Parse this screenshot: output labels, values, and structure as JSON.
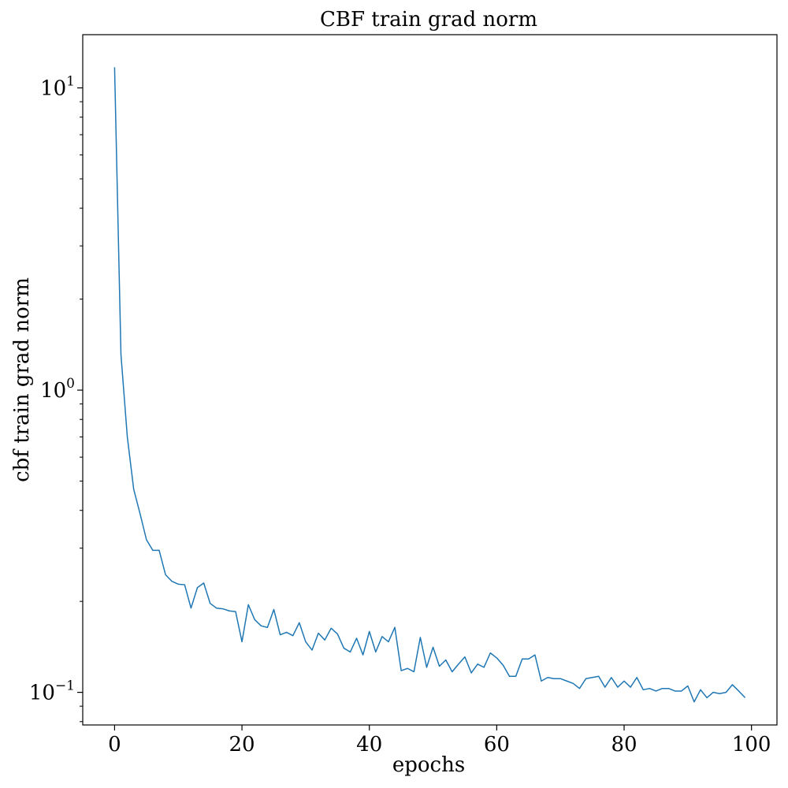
{
  "chart_data": {
    "type": "line",
    "title": "CBF train grad norm",
    "xlabel": "epochs",
    "ylabel": "cbf train grad norm",
    "xlim": [
      -5,
      104
    ],
    "ylim": [
      0.078,
      15
    ],
    "yscale": "log",
    "grid": false,
    "x_ticks": [
      0,
      20,
      40,
      60,
      80,
      100
    ],
    "y_major_ticks": [
      0.1,
      1,
      10
    ],
    "y_tick_labels": [
      {
        "base": "10",
        "exp": "−1"
      },
      {
        "base": "10",
        "exp": "0"
      },
      {
        "base": "10",
        "exp": "1"
      }
    ],
    "series": [
      {
        "color": "#1f77b4",
        "values": [
          11.7,
          1.31,
          0.7,
          0.47,
          0.39,
          0.32,
          0.295,
          0.295,
          0.245,
          0.233,
          0.228,
          0.227,
          0.19,
          0.222,
          0.23,
          0.197,
          0.19,
          0.189,
          0.186,
          0.185,
          0.147,
          0.195,
          0.174,
          0.166,
          0.164,
          0.188,
          0.155,
          0.158,
          0.154,
          0.17,
          0.147,
          0.138,
          0.157,
          0.149,
          0.163,
          0.156,
          0.14,
          0.136,
          0.151,
          0.133,
          0.159,
          0.136,
          0.153,
          0.147,
          0.164,
          0.118,
          0.12,
          0.117,
          0.152,
          0.121,
          0.141,
          0.122,
          0.128,
          0.117,
          0.124,
          0.131,
          0.116,
          0.124,
          0.121,
          0.135,
          0.13,
          0.123,
          0.113,
          0.113,
          0.129,
          0.129,
          0.133,
          0.109,
          0.112,
          0.111,
          0.111,
          0.109,
          0.107,
          0.103,
          0.111,
          0.112,
          0.113,
          0.104,
          0.112,
          0.104,
          0.109,
          0.104,
          0.112,
          0.102,
          0.103,
          0.101,
          0.103,
          0.103,
          0.101,
          0.101,
          0.105,
          0.093,
          0.102,
          0.096,
          0.1,
          0.099,
          0.1,
          0.106,
          0.101,
          0.096
        ]
      }
    ]
  }
}
